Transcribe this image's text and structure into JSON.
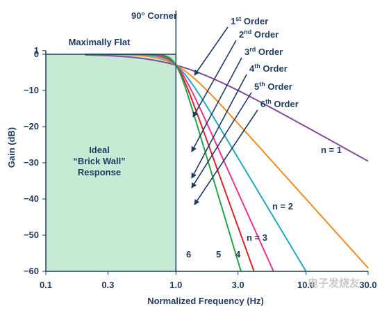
{
  "chart_data": {
    "type": "line",
    "xscale": "log",
    "xlabel": "Normalized Frequency (Hz)",
    "ylabel": "Gain (dB)",
    "xlim": [
      0.1,
      30
    ],
    "ylim": [
      -60,
      1
    ],
    "x_ticks": [
      {
        "value": 0.1,
        "label": "0.1"
      },
      {
        "value": 0.3,
        "label": "0.3"
      },
      {
        "value": 1.0,
        "label": "1.0"
      },
      {
        "value": 3.0,
        "label": "3.0"
      },
      {
        "value": 10.0,
        "label": "10.0"
      },
      {
        "value": 30.0,
        "label": "30.0"
      }
    ],
    "y_ticks": [
      1,
      0,
      -10,
      -20,
      -30,
      -40,
      -50,
      -60
    ],
    "ideal_region": {
      "x_from": 0.1,
      "x_to": 1.0,
      "y_top": 0,
      "y_bottom": -60,
      "label_lines": [
        "Ideal",
        "“Brick Wall”",
        "Response"
      ],
      "color": "#c6ead4"
    },
    "series": [
      {
        "order": 1,
        "color": "#7f4aa0"
      },
      {
        "order": 2,
        "color": "#f08c1e"
      },
      {
        "order": 3,
        "color": "#1fa6c8"
      },
      {
        "order": 4,
        "color": "#e8348f"
      },
      {
        "order": 5,
        "color": "#d8232a"
      },
      {
        "order": 6,
        "color": "#22a447"
      }
    ],
    "curve_labels": [
      {
        "text": "n = 1",
        "order": 1
      },
      {
        "text": "n = 2",
        "order": 2
      },
      {
        "text": "n = 3",
        "order": 3
      },
      {
        "text": "4",
        "order": 4
      },
      {
        "text": "5",
        "order": 5
      },
      {
        "text": "6",
        "order": 6
      }
    ],
    "order_labels": [
      {
        "num": "1",
        "sup": "st",
        "rest": " Order"
      },
      {
        "num": "2",
        "sup": "nd",
        "rest": " Order"
      },
      {
        "num": "3",
        "sup": "rd",
        "rest": " Order"
      },
      {
        "num": "4",
        "sup": "th",
        "rest": " Order"
      },
      {
        "num": "5",
        "sup": "th",
        "rest": " Order"
      },
      {
        "num": "6",
        "sup": "th",
        "rest": " Order"
      }
    ],
    "annotations": {
      "corner": "90° Corner",
      "flat": "Maximally Flat"
    }
  },
  "watermark": "电子发烧友",
  "colors": {
    "axis": "#1f3a5f",
    "arrow": "#1f3a5f"
  }
}
